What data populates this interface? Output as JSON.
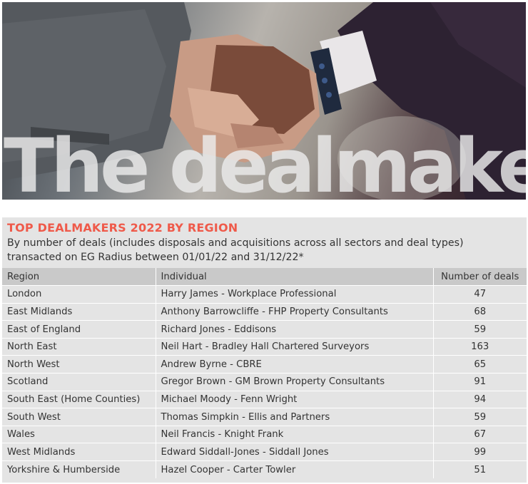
{
  "hero": {
    "title": "The dealmakers"
  },
  "panel": {
    "title": "TOP DEALMAKERS 2022 BY REGION",
    "subtitle_line1": "By number of deals (includes disposals and acquisitions across all sectors and deal types)",
    "subtitle_line2": "transacted on EG Radius between 01/01/22 and 31/12/22*"
  },
  "table": {
    "headers": [
      "Region",
      "Individual",
      "Number of deals"
    ],
    "rows": [
      [
        "London",
        "Harry James - Workplace Professional",
        "47"
      ],
      [
        "East Midlands",
        "Anthony Barrowcliffe - FHP Property Consultants",
        "68"
      ],
      [
        "East of England",
        "Richard Jones - Eddisons",
        "59"
      ],
      [
        "North East",
        "Neil Hart - Bradley Hall Chartered Surveyors",
        "163"
      ],
      [
        "North West",
        "Andrew Byrne - CBRE",
        "65"
      ],
      [
        "Scotland",
        "Gregor Brown - GM Brown Property Consultants",
        "91"
      ],
      [
        "South East (Home Counties)",
        "Michael Moody - Fenn Wright",
        "94"
      ],
      [
        "South West",
        "Thomas Simpkin - Ellis and Partners",
        "59"
      ],
      [
        "Wales",
        "Neil Francis - Knight Frank",
        "67"
      ],
      [
        "West Midlands",
        "Edward Siddall-Jones - Siddall Jones",
        "99"
      ],
      [
        "Yorkshire & Humberside",
        "Hazel Cooper - Carter Towler",
        "51"
      ]
    ]
  },
  "colors": {
    "title_accent": "#ef5a4a",
    "panel_bg": "#e4e4e4",
    "header_bg": "#c9c9c9"
  }
}
